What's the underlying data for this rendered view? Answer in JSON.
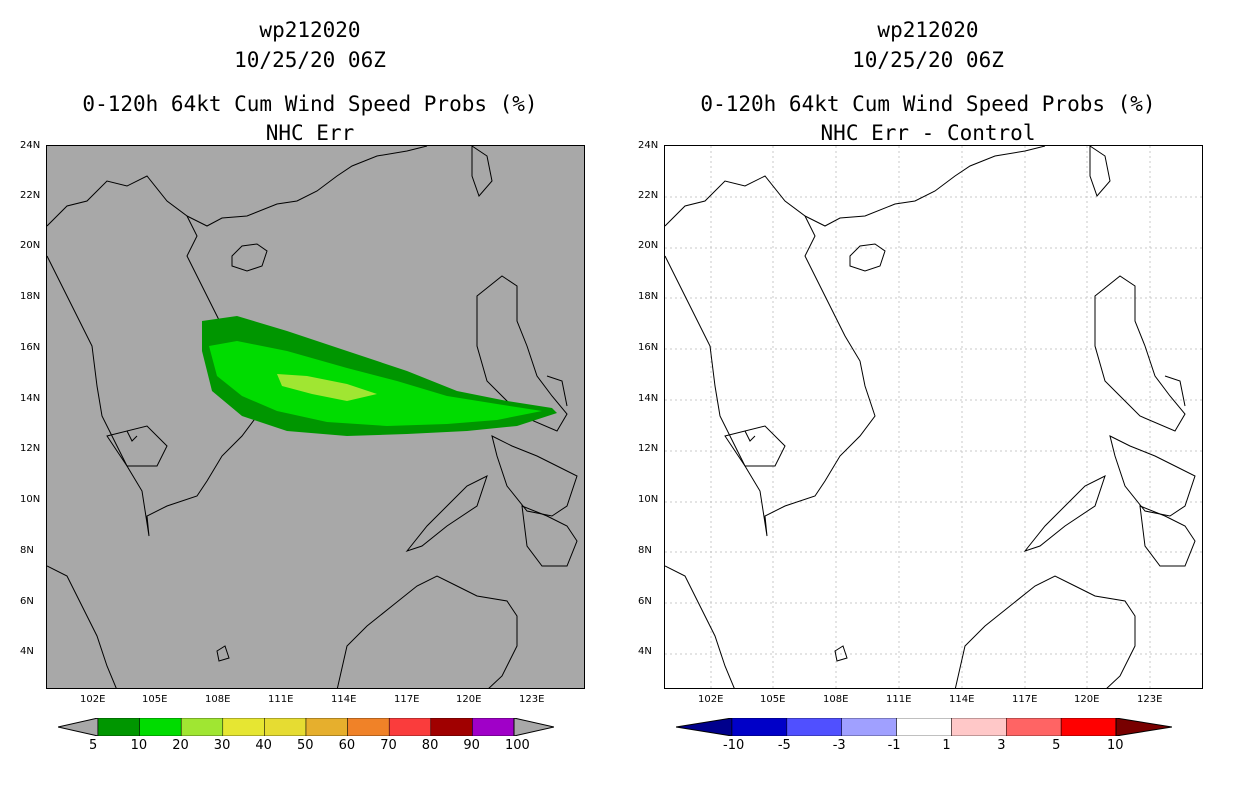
{
  "panels": [
    {
      "storm_id": "wp212020",
      "datetime": "10/25/20 06Z",
      "title": "0-120h 64kt Cum Wind Speed Probs (%)",
      "subtitle": "NHC Err",
      "colorbar": {
        "labels": [
          "5",
          "10",
          "20",
          "30",
          "40",
          "50",
          "60",
          "70",
          "80",
          "90",
          "100"
        ],
        "colors": [
          "#009600",
          "#00dc00",
          "#a0e632",
          "#e6e632",
          "#e6dc32",
          "#e6af2d",
          "#f08228",
          "#fa3c3c",
          "#a00000",
          "#a000c8"
        ]
      }
    },
    {
      "storm_id": "wp212020",
      "datetime": "10/25/20 06Z",
      "title": "0-120h 64kt Cum Wind Speed Probs (%)",
      "subtitle": "NHC Err - Control",
      "colorbar": {
        "labels": [
          "-10",
          "-5",
          "-3",
          "-1",
          "1",
          "3",
          "5",
          "10"
        ],
        "colors": [
          "#0000c8",
          "#5050ff",
          "#a0a0ff",
          "#ffffff",
          "#ffc8c8",
          "#ff6464",
          "#ff0000"
        ]
      }
    }
  ],
  "axes": {
    "lat_labels": [
      "24N",
      "22N",
      "20N",
      "18N",
      "16N",
      "14N",
      "12N",
      "10N",
      "8N",
      "6N",
      "4N"
    ],
    "lon_labels": [
      "102E",
      "105E",
      "108E",
      "111E",
      "114E",
      "117E",
      "120E",
      "123E"
    ]
  },
  "colors": {
    "land_fill": "#a8a8a8",
    "coast": "#000000",
    "grid": "#c8c8c8"
  }
}
